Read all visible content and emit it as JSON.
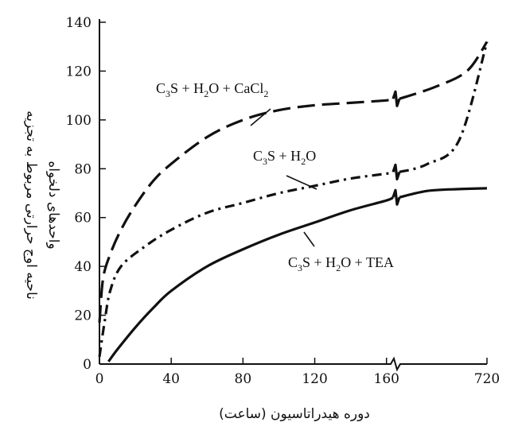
{
  "chart_data": {
    "type": "line",
    "xlabel": "دوره هیدراتاسیون (ساعت)",
    "ylabel_lines": [
      "ناحیه اوج حرارتی مربوط به تجزیه",
      "واحدهای دلخواه"
    ],
    "x_ticks": [
      "0",
      "40",
      "80",
      "120",
      "160",
      "720"
    ],
    "y_ticks": [
      "0",
      "20",
      "40",
      "60",
      "80",
      "100",
      "120",
      "140"
    ],
    "ylim": [
      0,
      140
    ],
    "x_break": "between 160 and 720",
    "series": [
      {
        "name": "C3S + H2O + CaCl2",
        "label_parts": [
          [
            "C",
            "n"
          ],
          [
            "3",
            "sub"
          ],
          [
            "S + H",
            "n"
          ],
          [
            "2",
            "sub"
          ],
          [
            "O + CaCl",
            "n"
          ],
          [
            "2",
            "sub"
          ]
        ],
        "style": "dashed",
        "points": [
          [
            0,
            17
          ],
          [
            2,
            35
          ],
          [
            6,
            45
          ],
          [
            12,
            55
          ],
          [
            20,
            65
          ],
          [
            30,
            75
          ],
          [
            40,
            82
          ],
          [
            60,
            93
          ],
          [
            80,
            100
          ],
          [
            100,
            104
          ],
          [
            120,
            106
          ],
          [
            140,
            107
          ],
          [
            160,
            108
          ],
          [
            720,
            132
          ]
        ]
      },
      {
        "name": "C3S + H2O",
        "label_parts": [
          [
            "C",
            "n"
          ],
          [
            "3",
            "sub"
          ],
          [
            "S + H",
            "n"
          ],
          [
            "2",
            "sub"
          ],
          [
            "O",
            "n"
          ]
        ],
        "style": "dash-dot",
        "points": [
          [
            0,
            3
          ],
          [
            3,
            18
          ],
          [
            6,
            30
          ],
          [
            12,
            40
          ],
          [
            25,
            48
          ],
          [
            40,
            55
          ],
          [
            60,
            62
          ],
          [
            80,
            66
          ],
          [
            100,
            70
          ],
          [
            120,
            73
          ],
          [
            140,
            76
          ],
          [
            160,
            78
          ],
          [
            720,
            132
          ]
        ]
      },
      {
        "name": "C3S + H2O + TEA",
        "label_parts": [
          [
            "C",
            "n"
          ],
          [
            "3",
            "sub"
          ],
          [
            "S + H",
            "n"
          ],
          [
            "2",
            "sub"
          ],
          [
            "O + TEA",
            "n"
          ]
        ],
        "style": "solid",
        "points": [
          [
            5,
            1
          ],
          [
            10,
            6
          ],
          [
            20,
            15
          ],
          [
            30,
            23
          ],
          [
            40,
            30
          ],
          [
            60,
            40
          ],
          [
            80,
            47
          ],
          [
            100,
            53
          ],
          [
            120,
            58
          ],
          [
            140,
            63
          ],
          [
            160,
            67
          ],
          [
            720,
            72
          ]
        ]
      }
    ]
  }
}
